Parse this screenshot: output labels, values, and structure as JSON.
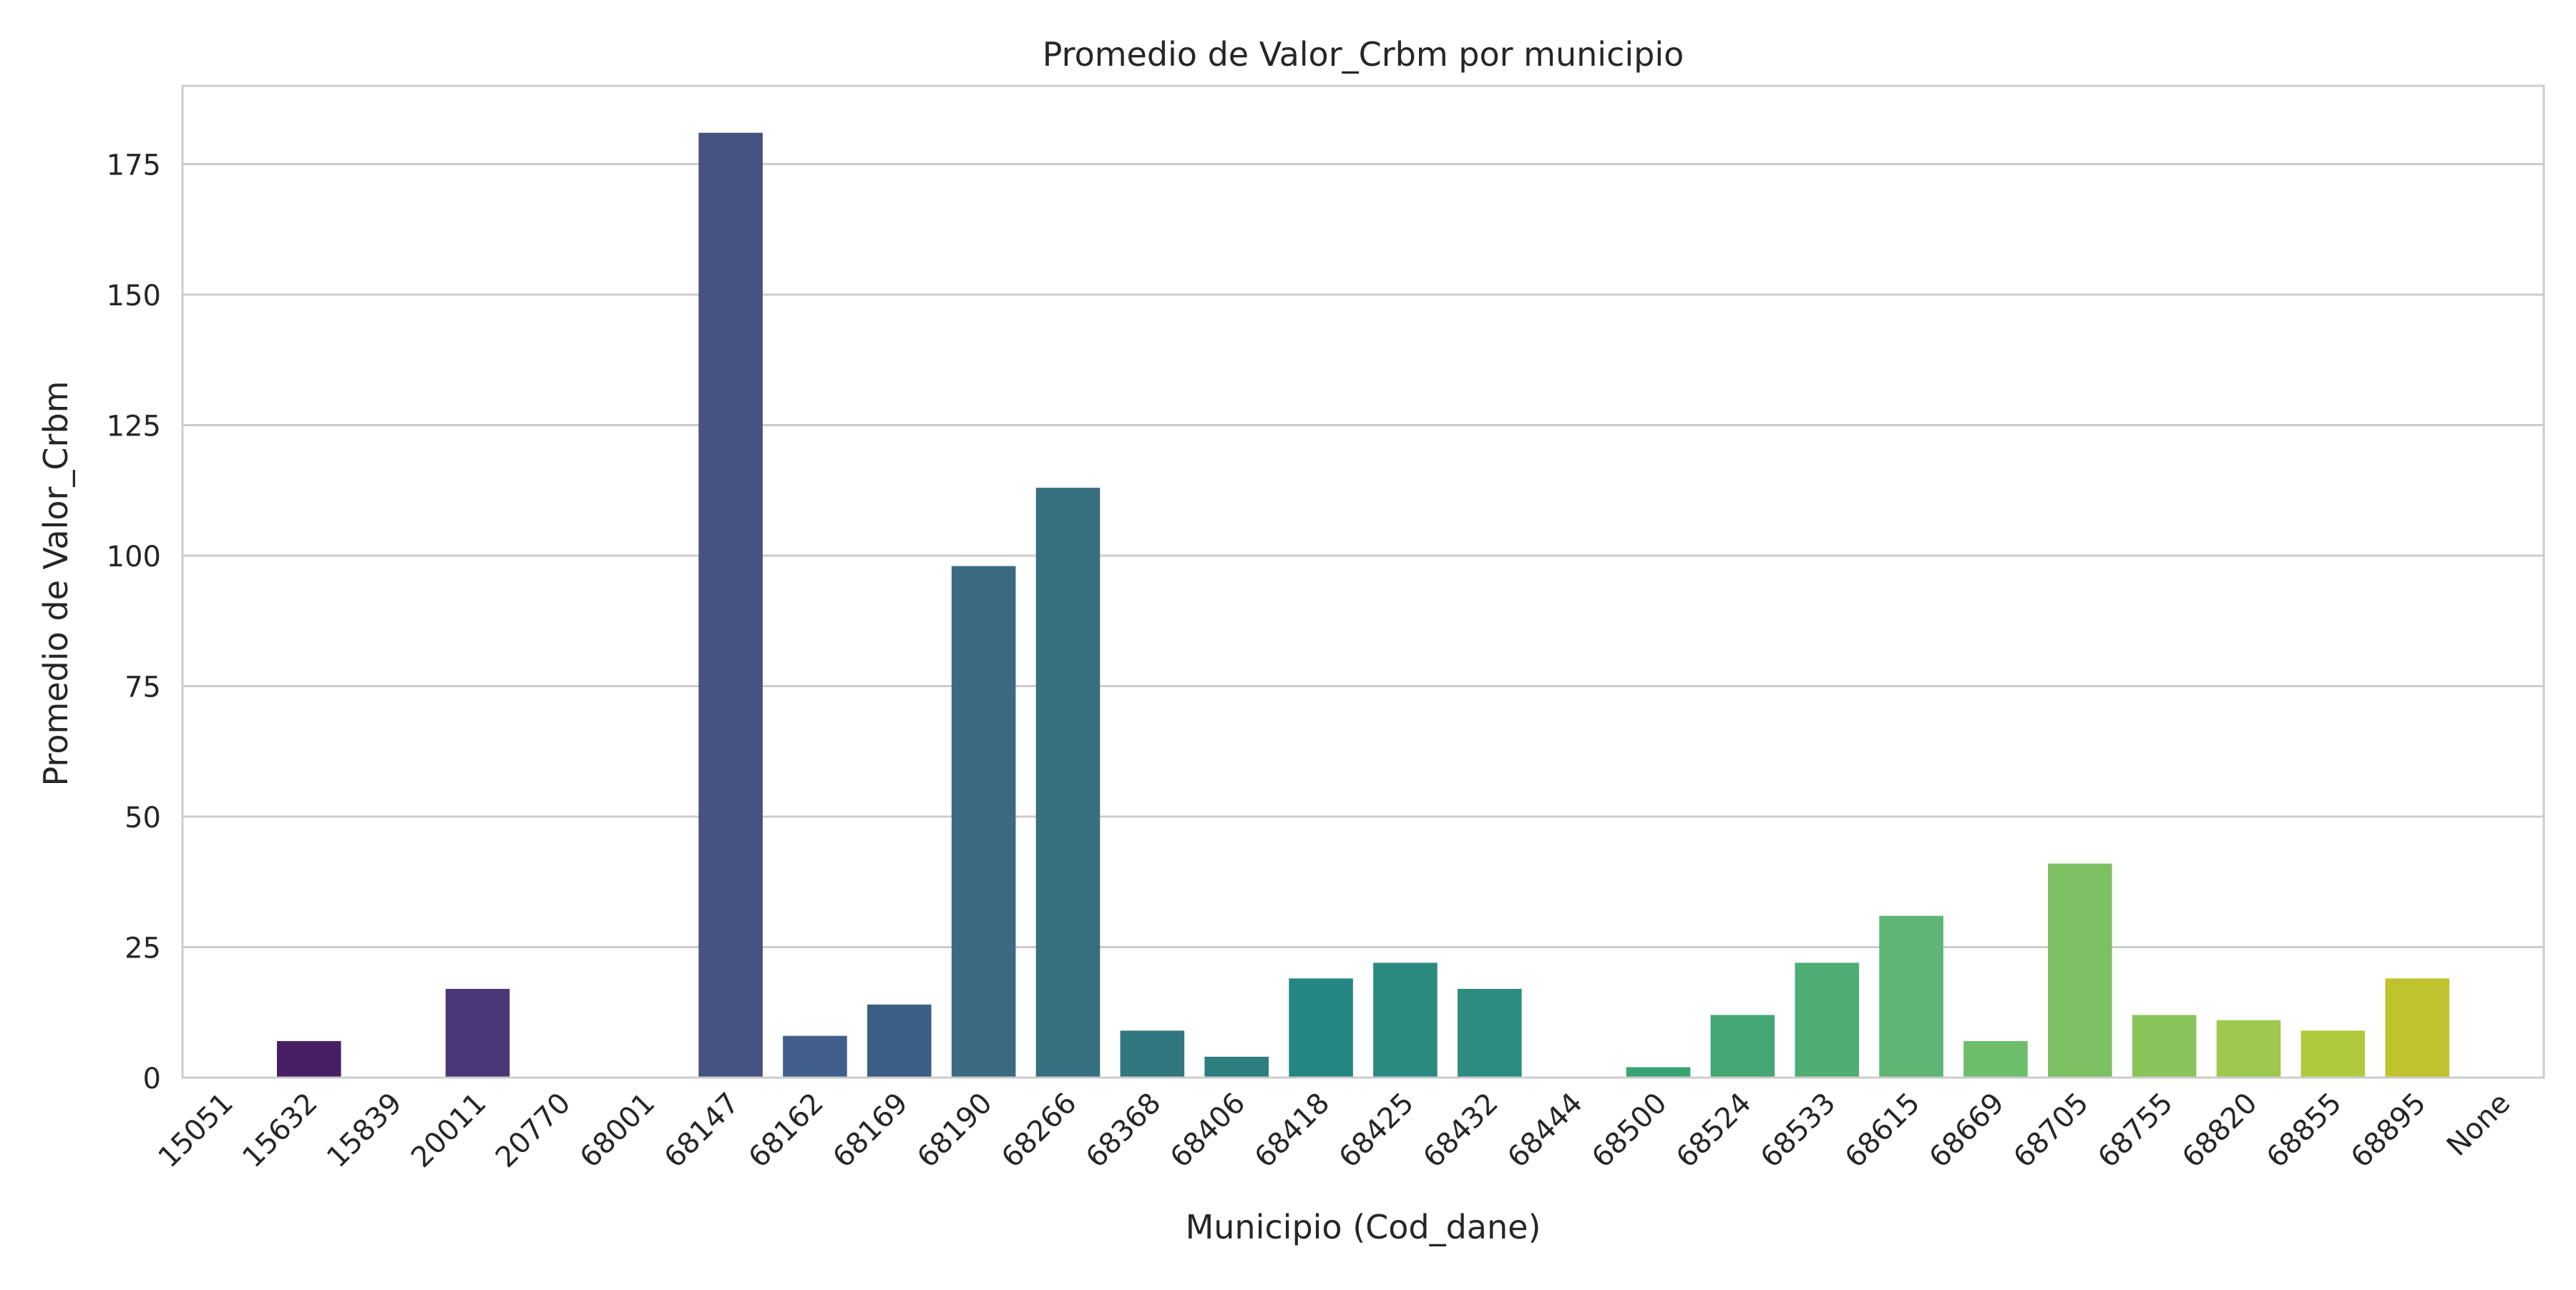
{
  "chart_data": {
    "type": "bar",
    "title": "Promedio de Valor_Crbm por municipio",
    "xlabel": "Municipio (Cod_dane)",
    "ylabel": "Promedio de Valor_Crbm",
    "ylim": [
      0,
      190
    ],
    "yticks": [
      0,
      25,
      50,
      75,
      100,
      125,
      150,
      175
    ],
    "grid": "horizontal",
    "legend": "none",
    "palette": "viridis",
    "categories": [
      "15051",
      "15632",
      "15839",
      "20011",
      "20770",
      "68001",
      "68147",
      "68162",
      "68169",
      "68190",
      "68266",
      "68368",
      "68406",
      "68418",
      "68425",
      "68432",
      "68444",
      "68500",
      "68524",
      "68533",
      "68615",
      "68669",
      "68705",
      "68755",
      "68820",
      "68855",
      "68895",
      "None"
    ],
    "values": [
      0,
      7,
      0,
      17,
      0,
      0,
      181,
      8,
      14,
      98,
      113,
      9,
      4,
      19,
      22,
      17,
      0,
      2,
      12,
      22,
      31,
      7,
      41,
      12,
      11,
      9,
      19,
      0
    ],
    "colors": [
      "#440154",
      "#471f62",
      "#482e6f",
      "#4b3778",
      "#433e85",
      "#3d4a88",
      "#46527f",
      "#415f8a",
      "#3b5e85",
      "#3b6a83",
      "#366f80",
      "#30777f",
      "#2c7e7f",
      "#268682",
      "#2b8a80",
      "#2d8c7f",
      "#2a957d",
      "#3aa374",
      "#44a773",
      "#4dad74",
      "#5fb574",
      "#6cbe6c",
      "#7cc063",
      "#88c45a",
      "#9fc84e",
      "#b0ca3d",
      "#bec32e",
      "#e3e41c"
    ]
  }
}
